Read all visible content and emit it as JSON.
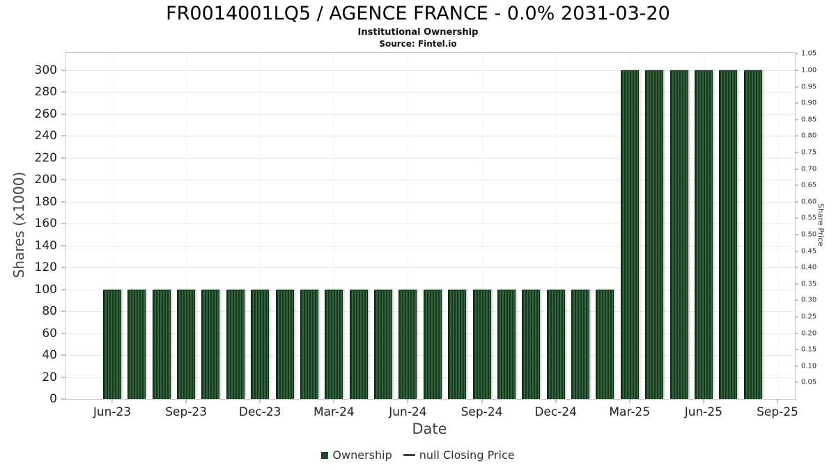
{
  "chart_data": {
    "type": "bar",
    "title": "FR0014001LQ5 / AGENCE FRANCE - 0.0% 2031-03-20",
    "subtitle": "Institutional Ownership",
    "source": "Source: Fintel.io",
    "xlabel": "Date",
    "ylabel": "Shares (x1000)",
    "y2label": "Share Price",
    "series_name": "Ownership",
    "categories": [
      "Jun-23",
      "Jul-23",
      "Aug-23",
      "Sep-23",
      "Oct-23",
      "Nov-23",
      "Dec-23",
      "Jan-24",
      "Feb-24",
      "Mar-24",
      "Apr-24",
      "May-24",
      "Jun-24",
      "Jul-24",
      "Aug-24",
      "Sep-24",
      "Oct-24",
      "Nov-24",
      "Dec-24",
      "Jan-25",
      "Feb-25",
      "Mar-25",
      "Apr-25",
      "May-25",
      "Jun-25",
      "Jul-25",
      "Aug-25"
    ],
    "values": [
      100,
      100,
      100,
      100,
      100,
      100,
      100,
      100,
      100,
      100,
      100,
      100,
      100,
      100,
      100,
      100,
      100,
      100,
      100,
      100,
      100,
      300,
      300,
      300,
      300,
      300,
      300
    ],
    "ylim": [
      0,
      316
    ],
    "y_ticks": [
      0,
      20,
      40,
      60,
      80,
      100,
      120,
      140,
      160,
      180,
      200,
      220,
      240,
      260,
      280,
      300
    ],
    "y2_ticks": [
      1.05,
      1.0,
      0.95,
      0.9,
      0.85,
      0.8,
      0.75,
      0.7,
      0.65,
      0.6,
      0.55,
      0.5,
      0.45,
      0.4,
      0.35,
      0.3,
      0.25,
      0.2,
      0.15,
      0.1,
      0.05
    ],
    "x_ticks": [
      {
        "label": "Jun-23",
        "month_index": 0
      },
      {
        "label": "Sep-23",
        "month_index": 3
      },
      {
        "label": "Dec-23",
        "month_index": 6
      },
      {
        "label": "Mar-24",
        "month_index": 9
      },
      {
        "label": "Jun-24",
        "month_index": 12
      },
      {
        "label": "Sep-24",
        "month_index": 15
      },
      {
        "label": "Dec-24",
        "month_index": 18
      },
      {
        "label": "Mar-25",
        "month_index": 21
      },
      {
        "label": "Jun-25",
        "month_index": 24
      },
      {
        "label": "Sep-25",
        "month_index": 27
      }
    ],
    "legend": [
      {
        "label": "Ownership",
        "marker": "square",
        "color": "#1e4a28"
      },
      {
        "label": "null Closing Price",
        "marker": "dash",
        "color": "#444444"
      }
    ],
    "bar_color": "#1e4a28",
    "grid": true,
    "legend_position": "bottom"
  }
}
